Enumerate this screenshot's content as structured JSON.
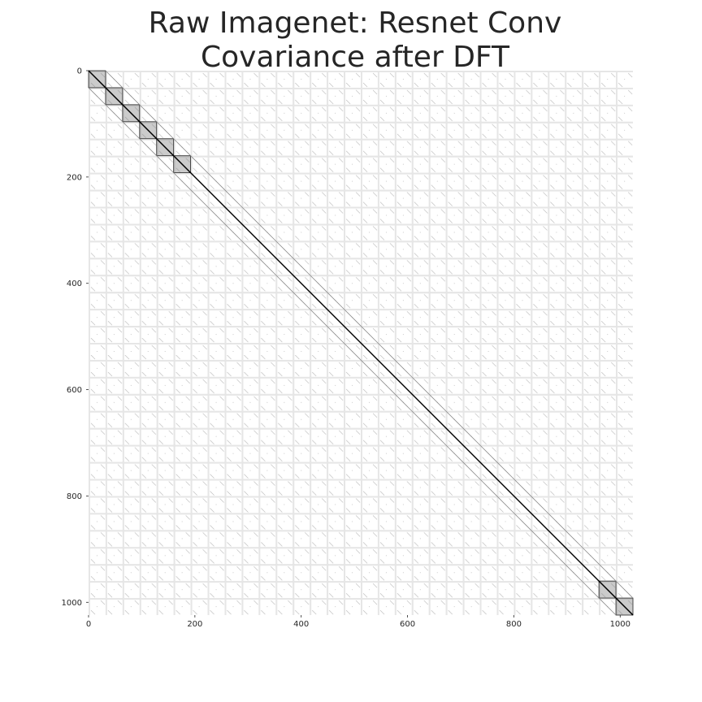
{
  "chart_data": {
    "type": "heatmap",
    "title_line1": "Raw Imagenet: Resnet Conv",
    "title_line2": "Covariance after DFT",
    "xlabel": "",
    "ylabel": "",
    "matrix_size": 1024,
    "block_size": 32,
    "xlim": [
      0,
      1024
    ],
    "ylim": [
      1024,
      0
    ],
    "xticks": [
      0,
      200,
      400,
      600,
      800,
      1000
    ],
    "yticks": [
      0,
      200,
      400,
      600,
      800,
      1000
    ],
    "colormap": "greys",
    "background_color": "#ffffff",
    "grid": false,
    "strong_diagonal_blocks": [
      [
        0,
        32
      ],
      [
        32,
        64
      ],
      [
        64,
        96
      ],
      [
        96,
        128
      ],
      [
        128,
        160
      ],
      [
        160,
        192
      ],
      [
        960,
        992
      ],
      [
        992,
        1024
      ]
    ]
  }
}
